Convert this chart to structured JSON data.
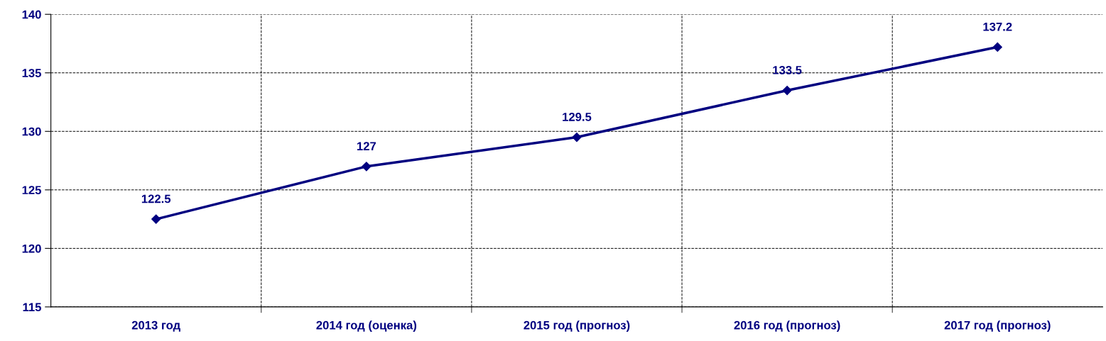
{
  "chart_data": {
    "type": "line",
    "categories": [
      "2013 год",
      "2014 год (оценка)",
      "2015 год (прогноз)",
      "2016 год (прогноз)",
      "2017 год (прогноз)"
    ],
    "series": [
      {
        "color": "#000080",
        "values": [
          122.5,
          127,
          129.5,
          133.5,
          137.2
        ]
      }
    ],
    "ylim": [
      115,
      140
    ],
    "yticks": [
      115,
      120,
      125,
      130,
      135,
      140
    ],
    "grid": true,
    "marker": "diamond",
    "line_style": "solid",
    "data_labels": true,
    "legend": false
  }
}
